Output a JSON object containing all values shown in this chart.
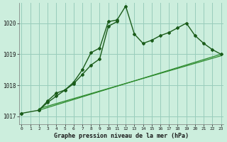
{
  "title": "Graphe pression niveau de la mer (hPa)",
  "bg_color": "#cceedd",
  "grid_color": "#99ccbb",
  "line_color_dark": "#1a5c1a",
  "line_color_light": "#2d8b2d",
  "ylim": [
    1016.75,
    1020.65
  ],
  "yticks": [
    1017,
    1018,
    1019,
    1020
  ],
  "xlim": [
    -0.3,
    23.3
  ],
  "xticks": [
    0,
    1,
    2,
    3,
    4,
    5,
    6,
    7,
    8,
    9,
    10,
    11,
    12,
    13,
    14,
    15,
    16,
    17,
    18,
    19,
    20,
    21,
    22,
    23
  ],
  "line1_x": [
    0,
    2,
    3,
    4,
    5,
    6,
    7,
    8,
    9,
    10,
    11,
    12,
    13,
    14,
    15,
    16,
    17,
    18,
    19,
    20,
    21,
    22,
    23
  ],
  "line1_y": [
    1017.1,
    1017.2,
    1017.5,
    1017.75,
    1017.85,
    1018.1,
    1018.5,
    1019.05,
    1019.2,
    1020.05,
    1020.1,
    1020.55,
    1019.65,
    1019.35,
    1019.45,
    1019.6,
    1019.7,
    1019.85,
    1020.0,
    1019.6,
    1019.35,
    1019.15,
    1019.0
  ],
  "line2_x": [
    2,
    3,
    4,
    5,
    6,
    7,
    8,
    9,
    10,
    11
  ],
  "line2_y": [
    1017.2,
    1017.45,
    1017.65,
    1017.85,
    1018.05,
    1018.35,
    1018.65,
    1018.85,
    1019.9,
    1020.05
  ],
  "line3_x": [
    2,
    23
  ],
  "line3_y": [
    1017.25,
    1018.95
  ],
  "line4_x": [
    2,
    23
  ],
  "line4_y": [
    1017.2,
    1019.0
  ]
}
